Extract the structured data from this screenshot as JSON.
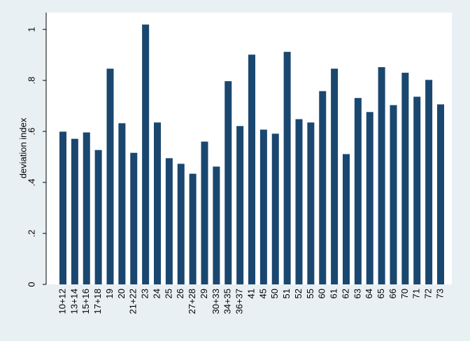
{
  "chart_data": {
    "type": "bar",
    "y_label": "deviation index",
    "categories": [
      "10+12",
      "13+14",
      "15+16",
      "17+18",
      "19",
      "20",
      "21+22",
      "23",
      "24",
      "25",
      "26",
      "27+28",
      "29",
      "30+33",
      "34+35",
      "36+37",
      "41",
      "45",
      "50",
      "51",
      "52",
      "55",
      "60",
      "61",
      "62",
      "63",
      "64",
      "65",
      "66",
      "70",
      "71",
      "72",
      "73"
    ],
    "values": [
      0.599,
      0.571,
      0.596,
      0.527,
      0.846,
      0.632,
      0.516,
      1.019,
      0.635,
      0.495,
      0.473,
      0.434,
      0.56,
      0.462,
      0.797,
      0.621,
      0.901,
      0.607,
      0.591,
      0.912,
      0.648,
      0.635,
      0.758,
      0.846,
      0.511,
      0.731,
      0.676,
      0.852,
      0.703,
      0.83,
      0.736,
      0.802,
      0.706
    ],
    "color": "#1a476f",
    "ylim": [
      0,
      1.066
    ],
    "yticks": [
      0,
      {
        "value": 0.2,
        "label": ".2"
      },
      {
        "value": 0.4,
        "label": ".4"
      },
      {
        "value": 0.6,
        "label": ".6"
      },
      {
        "value": 0.8,
        "label": ".8"
      },
      1
    ],
    "grid": false
  }
}
